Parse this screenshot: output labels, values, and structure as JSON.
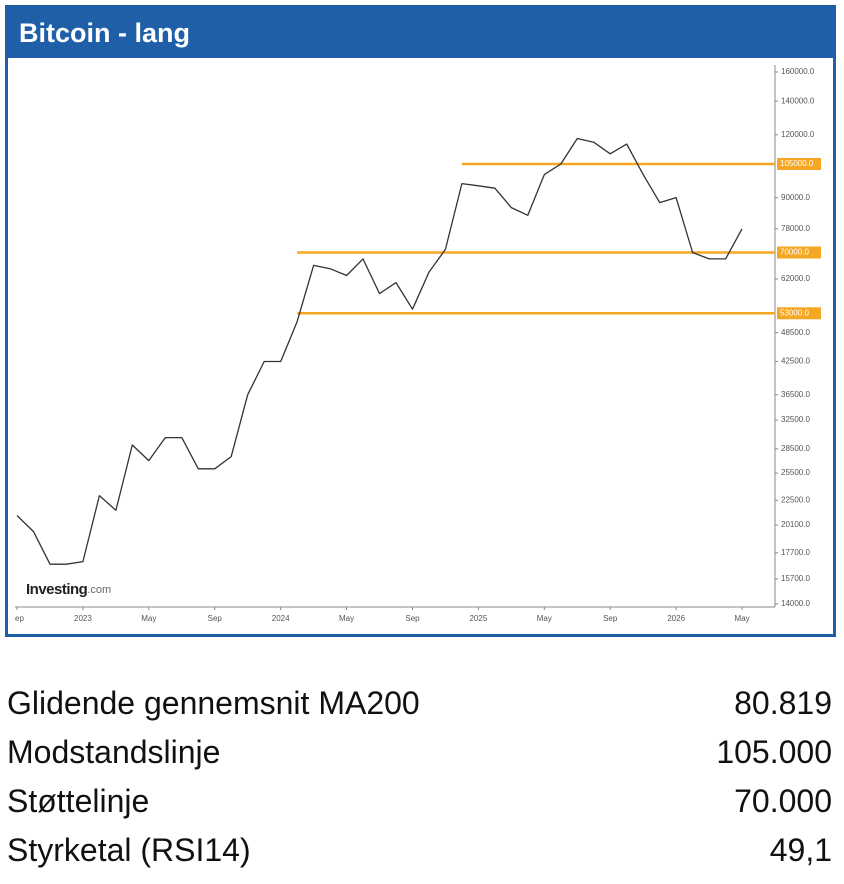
{
  "chart_data": {
    "type": "line",
    "title": "Bitcoin - lang",
    "log_scale": true,
    "x": [
      "2022-09",
      "2022-10",
      "2022-11",
      "2022-12",
      "2023-01",
      "2023-02",
      "2023-03",
      "2023-04",
      "2023-05",
      "2023-06",
      "2023-07",
      "2023-08",
      "2023-09",
      "2023-10",
      "2023-11",
      "2023-12",
      "2024-01",
      "2024-02",
      "2024-03",
      "2024-04",
      "2024-05",
      "2024-06",
      "2024-07",
      "2024-08",
      "2024-09",
      "2024-10",
      "2024-11",
      "2024-12",
      "2025-01",
      "2025-02",
      "2025-03",
      "2025-04",
      "2025-05",
      "2025-06",
      "2025-07",
      "2025-08",
      "2025-09",
      "2025-10",
      "2025-11",
      "2025-12",
      "2026-01",
      "2026-02",
      "2026-03",
      "2026-04",
      "2026-05"
    ],
    "series": [
      {
        "color": "#333333",
        "values": [
          21000,
          19500,
          16800,
          16800,
          17000,
          23000,
          21500,
          29000,
          27000,
          30000,
          30000,
          26000,
          26000,
          27500,
          36500,
          42500,
          42500,
          51000,
          66000,
          65000,
          63000,
          68000,
          58000,
          61000,
          54000,
          64000,
          71000,
          96000,
          95000,
          94000,
          86000,
          83000,
          100000,
          105000,
          118000,
          116000,
          110000,
          115000,
          100000,
          88000,
          90000,
          70000,
          68000,
          68000,
          78000
        ]
      }
    ],
    "xlim": [
      "2022-09",
      "2026-07"
    ],
    "xticks": [
      {
        "value": "2022-09",
        "label": "ep"
      },
      {
        "value": "2023-01",
        "label": "2023"
      },
      {
        "value": "2023-05",
        "label": "May"
      },
      {
        "value": "2023-09",
        "label": "Sep"
      },
      {
        "value": "2024-01",
        "label": "2024"
      },
      {
        "value": "2024-05",
        "label": "May"
      },
      {
        "value": "2024-09",
        "label": "Sep"
      },
      {
        "value": "2025-01",
        "label": "2025"
      },
      {
        "value": "2025-05",
        "label": "May"
      },
      {
        "value": "2025-09",
        "label": "Sep"
      },
      {
        "value": "2026-01",
        "label": "2026"
      },
      {
        "value": "2026-05",
        "label": "May"
      }
    ],
    "ylim": [
      14000,
      160000
    ],
    "yticks": [
      {
        "value": 14000,
        "label": "14000.0"
      },
      {
        "value": 15700,
        "label": "15700.0"
      },
      {
        "value": 17700,
        "label": "17700.0"
      },
      {
        "value": 20100,
        "label": "20100.0"
      },
      {
        "value": 22500,
        "label": "22500.0"
      },
      {
        "value": 25500,
        "label": "25500.0"
      },
      {
        "value": 28500,
        "label": "28500.0"
      },
      {
        "value": 32500,
        "label": "32500.0"
      },
      {
        "value": 36500,
        "label": "36500.0"
      },
      {
        "value": 42500,
        "label": "42500.0"
      },
      {
        "value": 48500,
        "label": "48500.0"
      },
      {
        "value": 62000,
        "label": "62000.0"
      },
      {
        "value": 78000,
        "label": "78000.0"
      },
      {
        "value": 90000,
        "label": "90000.0"
      },
      {
        "value": 120000,
        "label": "120000.0"
      },
      {
        "value": 140000,
        "label": "140000.0"
      },
      {
        "value": 160000,
        "label": "160000.0"
      }
    ],
    "horizontal_lines": [
      {
        "value": 105000,
        "label": "105000.0",
        "start": "2024-12",
        "color": "#f5a623"
      },
      {
        "value": 70000,
        "label": "70000.0",
        "start": "2024-02",
        "color": "#f5a623"
      },
      {
        "value": 53000,
        "label": "53000.0",
        "start": "2024-02",
        "color": "#f5a623"
      }
    ],
    "watermark": {
      "brand": "Investing",
      "suffix": ".com"
    }
  },
  "stats": [
    {
      "label": "Glidende gennemsnit MA200",
      "value": "80.819"
    },
    {
      "label": "Modstandslinje",
      "value": "105.000"
    },
    {
      "label": "Støttelinje",
      "value": "70.000"
    },
    {
      "label": "Styrketal (RSI14)",
      "value": "49,1"
    }
  ]
}
